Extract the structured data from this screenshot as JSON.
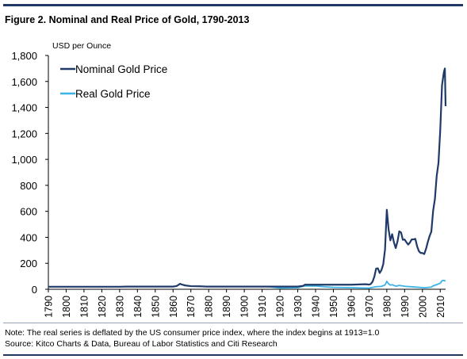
{
  "figure": {
    "title": "Figure 2. Nominal and Real Price of Gold, 1790-2013",
    "note": "Note: The real series is deflated by the US consumer price index, where the index begins at 1913=1.0",
    "source": "Source: Kitco Charts & Data, Bureau of Labor Statistics and Citi Research"
  },
  "colors": {
    "nominal": "#1f3a68",
    "real": "#3cb4e6",
    "rules": "#1f3864"
  },
  "chart_data": {
    "type": "line",
    "ylabel": "USD per Ounce",
    "xlim": [
      1790,
      2013
    ],
    "ylim": [
      0,
      1800
    ],
    "yticks": [
      0,
      200,
      400,
      600,
      800,
      1000,
      1200,
      1400,
      1600,
      1800
    ],
    "ytick_labels": [
      "0",
      "200",
      "400",
      "600",
      "800",
      "1,000",
      "1,200",
      "1,400",
      "1,600",
      "1,800"
    ],
    "xticks": [
      1790,
      1800,
      1810,
      1820,
      1830,
      1840,
      1850,
      1860,
      1870,
      1880,
      1890,
      1900,
      1910,
      1920,
      1930,
      1940,
      1950,
      1960,
      1970,
      1980,
      1990,
      2000,
      2010
    ],
    "legend": {
      "position": "top-left"
    },
    "grid": false,
    "series": [
      {
        "name": "Nominal Gold Price",
        "points": [
          [
            1790,
            19.4
          ],
          [
            1800,
            19.4
          ],
          [
            1810,
            19.4
          ],
          [
            1820,
            19.4
          ],
          [
            1830,
            19.4
          ],
          [
            1834,
            20.7
          ],
          [
            1840,
            20.7
          ],
          [
            1850,
            20.7
          ],
          [
            1860,
            20.7
          ],
          [
            1862,
            25
          ],
          [
            1864,
            42
          ],
          [
            1865,
            36
          ],
          [
            1867,
            29
          ],
          [
            1870,
            24
          ],
          [
            1875,
            23
          ],
          [
            1879,
            20.7
          ],
          [
            1890,
            20.7
          ],
          [
            1900,
            20.7
          ],
          [
            1910,
            20.7
          ],
          [
            1920,
            20.7
          ],
          [
            1930,
            20.7
          ],
          [
            1933,
            26
          ],
          [
            1934,
            35
          ],
          [
            1940,
            35
          ],
          [
            1950,
            35
          ],
          [
            1960,
            35
          ],
          [
            1968,
            39
          ],
          [
            1970,
            36
          ],
          [
            1971,
            41
          ],
          [
            1972,
            58
          ],
          [
            1973,
            97
          ],
          [
            1974,
            159
          ],
          [
            1975,
            161
          ],
          [
            1976,
            125
          ],
          [
            1977,
            148
          ],
          [
            1978,
            193
          ],
          [
            1979,
            306
          ],
          [
            1980,
            612
          ],
          [
            1981,
            460
          ],
          [
            1982,
            376
          ],
          [
            1983,
            424
          ],
          [
            1984,
            361
          ],
          [
            1985,
            317
          ],
          [
            1986,
            368
          ],
          [
            1987,
            446
          ],
          [
            1988,
            437
          ],
          [
            1989,
            381
          ],
          [
            1990,
            383
          ],
          [
            1991,
            362
          ],
          [
            1992,
            344
          ],
          [
            1993,
            360
          ],
          [
            1994,
            384
          ],
          [
            1995,
            384
          ],
          [
            1996,
            388
          ],
          [
            1997,
            331
          ],
          [
            1998,
            294
          ],
          [
            1999,
            279
          ],
          [
            2000,
            279
          ],
          [
            2001,
            271
          ],
          [
            2002,
            310
          ],
          [
            2003,
            363
          ],
          [
            2004,
            409
          ],
          [
            2005,
            444
          ],
          [
            2006,
            603
          ],
          [
            2007,
            695
          ],
          [
            2008,
            872
          ],
          [
            2009,
            972
          ],
          [
            2010,
            1225
          ],
          [
            2011,
            1572
          ],
          [
            2012,
            1669
          ],
          [
            2012.6,
            1700
          ],
          [
            2013,
            1410
          ]
        ]
      },
      {
        "name": "Real Gold Price",
        "points": [
          [
            1913,
            20.7
          ],
          [
            1920,
            10.3
          ],
          [
            1930,
            12.4
          ],
          [
            1934,
            26
          ],
          [
            1940,
            25
          ],
          [
            1945,
            19
          ],
          [
            1950,
            14.5
          ],
          [
            1960,
            12
          ],
          [
            1970,
            9.3
          ],
          [
            1974,
            20
          ],
          [
            1977,
            22
          ],
          [
            1979,
            33
          ],
          [
            1980,
            61
          ],
          [
            1981,
            42
          ],
          [
            1982,
            32
          ],
          [
            1983,
            35
          ],
          [
            1985,
            24
          ],
          [
            1987,
            30
          ],
          [
            1990,
            23
          ],
          [
            1995,
            18
          ],
          [
            2000,
            12.8
          ],
          [
            2001,
            11.4
          ],
          [
            2005,
            17
          ],
          [
            2006,
            26
          ],
          [
            2008,
            36
          ],
          [
            2010,
            46
          ],
          [
            2011,
            66
          ],
          [
            2012,
            68
          ],
          [
            2013,
            63
          ]
        ]
      }
    ]
  }
}
